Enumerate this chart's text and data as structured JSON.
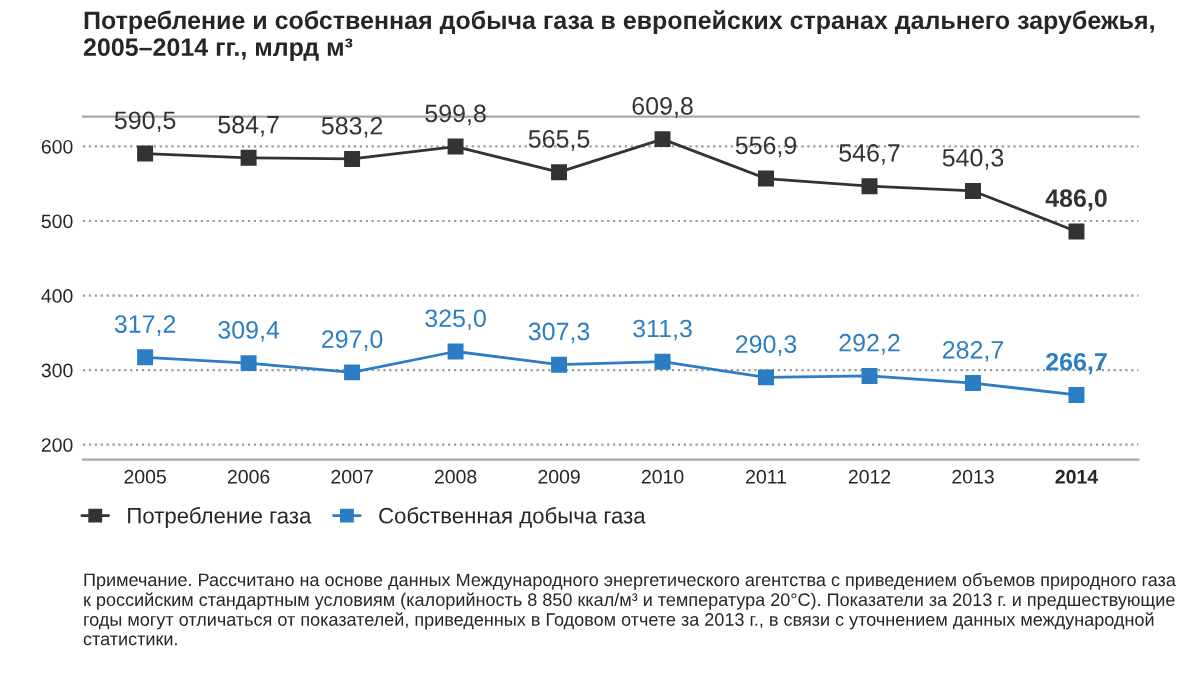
{
  "chart_data": {
    "type": "line",
    "title": "Потребление и собственная добыча газа в европейских странах дальнего зарубежья,\n2005–2014 гг., млрд м³",
    "categories": [
      "2005",
      "2006",
      "2007",
      "2008",
      "2009",
      "2010",
      "2011",
      "2012",
      "2013",
      "2014"
    ],
    "series": [
      {
        "name": "Потребление газа",
        "color": "#333333",
        "values": [
          590.5,
          584.7,
          583.2,
          599.8,
          565.5,
          609.8,
          556.9,
          546.7,
          540.3,
          486.0
        ],
        "value_labels": [
          "590,5",
          "584,7",
          "583,2",
          "599,8",
          "565,5",
          "609,8",
          "556,9",
          "546,7",
          "540,3",
          "486,0"
        ]
      },
      {
        "name": "Собственная добыча газа",
        "color": "#2b7dc4",
        "values": [
          317.2,
          309.4,
          297.0,
          325.0,
          307.3,
          311.3,
          290.3,
          292.2,
          282.7,
          266.7
        ],
        "value_labels": [
          "317,2",
          "309,4",
          "297,0",
          "325,0",
          "307,3",
          "311,3",
          "290,3",
          "292,2",
          "282,7",
          "266,7"
        ]
      }
    ],
    "ylim": [
      180,
      640
    ],
    "yticks": [
      200,
      300,
      400,
      500,
      600
    ],
    "grid": "y",
    "marker": "square",
    "line_style": "solid",
    "legend": "bottom left",
    "annotations": [
      "Примечание. Рассчитано на основе данных Международного энергетического агентства с приведением объемов природного газа к российским стандартным условиям (калорийность 8 850 ккал/м³ и температура 20°C). Показатели за 2013 г. и предшествующие годы могут отличаться от показателей, приведенных в Годовом отчете за 2013 г., в связи с уточнением данных международной статистики."
    ]
  }
}
